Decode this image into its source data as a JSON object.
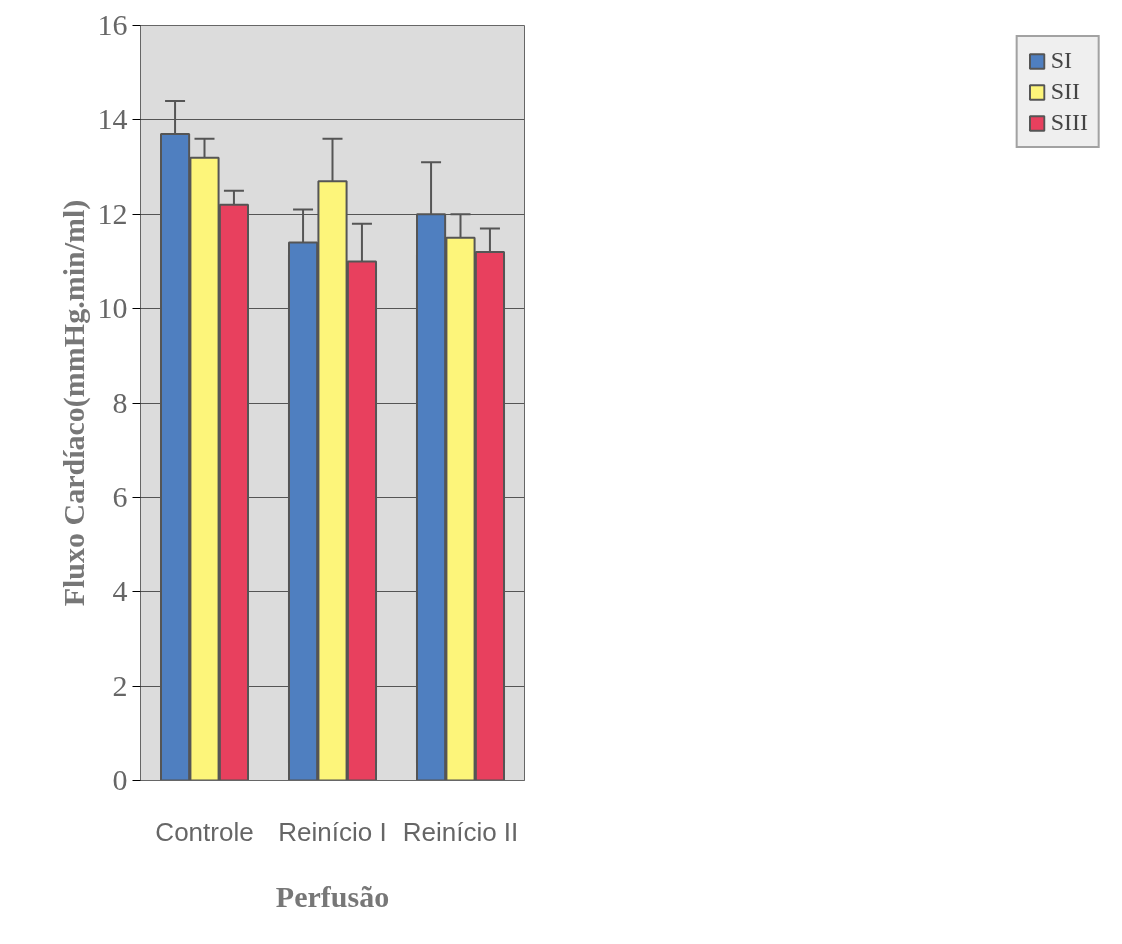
{
  "chart_data": {
    "type": "bar",
    "xlabel": "Perfusão",
    "ylabel": "Fluxo Cardíaco(mmHg.min/ml)",
    "categories": [
      "Controle",
      "Reinício I",
      "Reinício II"
    ],
    "series": [
      {
        "name": "SI",
        "color": "#4f7fc0",
        "values": [
          13.7,
          11.4,
          12.0
        ],
        "errors": [
          [
            13.7,
            14.4
          ],
          [
            11.4,
            12.1
          ],
          [
            12.0,
            13.1
          ]
        ]
      },
      {
        "name": "SII",
        "color": "#fdf57a",
        "values": [
          13.2,
          12.7,
          11.5
        ],
        "errors": [
          [
            13.2,
            13.6
          ],
          [
            12.7,
            13.6
          ],
          [
            11.5,
            12.0
          ]
        ]
      },
      {
        "name": "SIII",
        "color": "#e8405e",
        "values": [
          12.2,
          11.0,
          11.2
        ],
        "errors": [
          [
            12.2,
            12.5
          ],
          [
            11.0,
            11.8
          ],
          [
            11.2,
            11.7
          ]
        ]
      }
    ],
    "ylim": [
      0,
      16
    ],
    "yticks": [
      0,
      2,
      4,
      6,
      8,
      10,
      12,
      14,
      16
    ],
    "grid": "y",
    "legend": "right"
  }
}
